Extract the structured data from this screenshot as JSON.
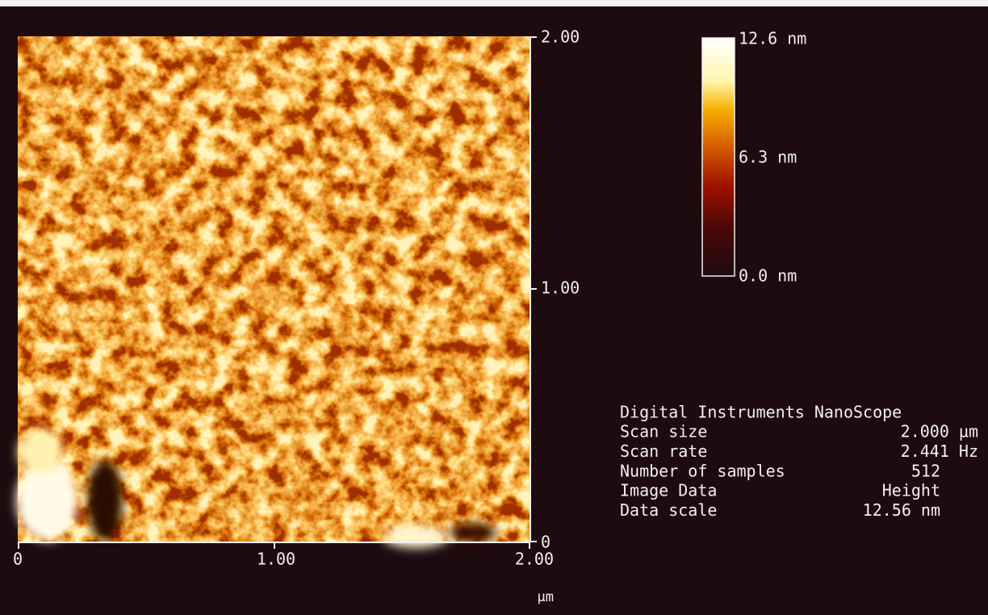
{
  "image": {
    "y_ticks": [
      "2.00",
      "1.00",
      "0"
    ],
    "x_ticks": [
      "0",
      "1.00",
      "2.00"
    ],
    "x_unit": "µm"
  },
  "color_scale": {
    "labels": [
      "12.6 nm",
      "6.3 nm",
      "0.0 nm"
    ]
  },
  "info": {
    "title": "Digital Instruments NanoScope",
    "rows": [
      [
        "Scan size",
        "2.000 µm"
      ],
      [
        "Scan rate",
        "2.441 Hz"
      ],
      [
        "Number of samples",
        "512"
      ],
      [
        "Image Data",
        "Height"
      ],
      [
        "Data scale",
        "12.56 nm"
      ]
    ]
  }
}
